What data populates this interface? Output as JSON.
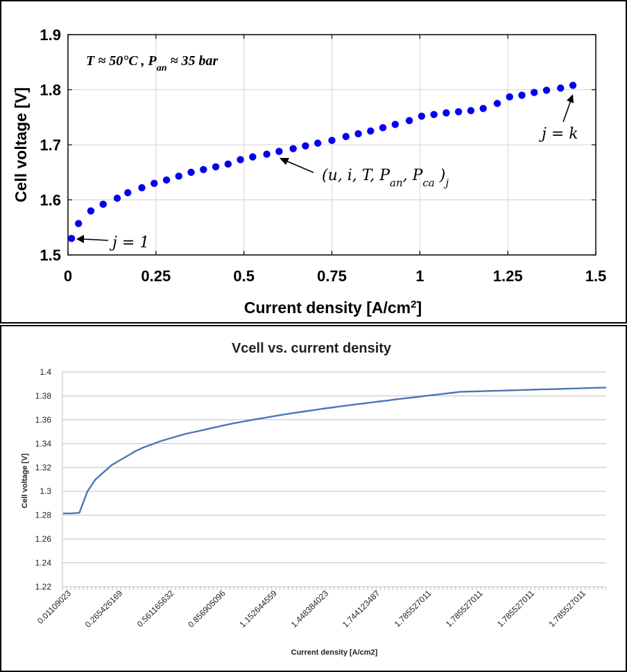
{
  "chart_data": [
    {
      "type": "scatter",
      "title": "",
      "xlabel": "Current density [A/cm",
      "xlabel_sup": "2",
      "xlabel_end": "]",
      "ylabel": "Cell voltage [V]",
      "xlim": [
        0,
        1.5
      ],
      "ylim": [
        1.5,
        1.9
      ],
      "x_ticks": [
        "0",
        "0.25",
        "0.5",
        "0.75",
        "1",
        "1.25",
        "1.5"
      ],
      "y_ticks": [
        "1.5",
        "1.6",
        "1.7",
        "1.8",
        "1.9"
      ],
      "grid": true,
      "marker_color": "#0000ee",
      "conditions": {
        "t_text": "T ≈ 50°C ,  P",
        "t_sub": "an",
        "t_end": " ≈ 35 bar"
      },
      "annotations": {
        "first": "j = 1",
        "last": "j = k",
        "tuple_open": "(u, i, T, P",
        "tuple_sub1": "an",
        "tuple_mid": ", P",
        "tuple_sub2": "ca",
        "tuple_close": " )",
        "tuple_subj": "j"
      },
      "series": [
        {
          "x": [
            0.01,
            0.03,
            0.065,
            0.1,
            0.14,
            0.17,
            0.21,
            0.245,
            0.28,
            0.315,
            0.35,
            0.385,
            0.42,
            0.455,
            0.49,
            0.525,
            0.565,
            0.6,
            0.64,
            0.675,
            0.71,
            0.75,
            0.79,
            0.825,
            0.86,
            0.895,
            0.93,
            0.97,
            1.005,
            1.04,
            1.075,
            1.11,
            1.145,
            1.18,
            1.22,
            1.255,
            1.29,
            1.325,
            1.36,
            1.4,
            1.435
          ],
          "y": [
            1.53,
            1.557,
            1.58,
            1.592,
            1.603,
            1.613,
            1.622,
            1.63,
            1.636,
            1.643,
            1.65,
            1.655,
            1.66,
            1.665,
            1.673,
            1.678,
            1.683,
            1.688,
            1.693,
            1.698,
            1.703,
            1.708,
            1.715,
            1.72,
            1.725,
            1.731,
            1.737,
            1.744,
            1.752,
            1.755,
            1.758,
            1.76,
            1.762,
            1.766,
            1.775,
            1.787,
            1.79,
            1.795,
            1.799,
            1.803,
            1.808
          ]
        }
      ]
    },
    {
      "type": "line",
      "title": "Vcell vs. current density",
      "xlabel": "Current density [A/cm2]",
      "ylabel": "Cell voltage [V]",
      "ylim": [
        1.22,
        1.4
      ],
      "y_ticks": [
        "1.22",
        "1.24",
        "1.26",
        "1.28",
        "1.3",
        "1.32",
        "1.34",
        "1.36",
        "1.38",
        "1.4"
      ],
      "x_tick_labels": [
        "0.01109023",
        "0.265426169",
        "0.561165632",
        "0.856905096",
        "1.152644559",
        "1.448384023",
        "1.744123487",
        "1.785527011",
        "1.785527011",
        "1.785527011",
        "1.785527011"
      ],
      "line_color": "#4a77b4",
      "grid": true,
      "series": [
        {
          "values": [
            1.2815,
            1.2815,
            1.282,
            1.3,
            1.31,
            1.316,
            1.322,
            1.326,
            1.33,
            1.334,
            1.337,
            1.3395,
            1.342,
            1.344,
            1.346,
            1.348,
            1.3495,
            1.351,
            1.3525,
            1.354,
            1.3555,
            1.357,
            1.3582,
            1.3595,
            1.3607,
            1.3618,
            1.363,
            1.3641,
            1.3652,
            1.3662,
            1.3672,
            1.3682,
            1.3692,
            1.3701,
            1.371,
            1.3719,
            1.3728,
            1.3736,
            1.3745,
            1.3753,
            1.3761,
            1.377,
            1.3778,
            1.3786,
            1.3794,
            1.3802,
            1.381,
            1.3818,
            1.3826,
            1.3834,
            1.3836,
            1.3838,
            1.384,
            1.3842,
            1.3844,
            1.3846,
            1.3848,
            1.385,
            1.3852,
            1.3854,
            1.3856,
            1.3858,
            1.386,
            1.3862,
            1.3864,
            1.3866,
            1.3868,
            1.387
          ]
        }
      ]
    }
  ]
}
